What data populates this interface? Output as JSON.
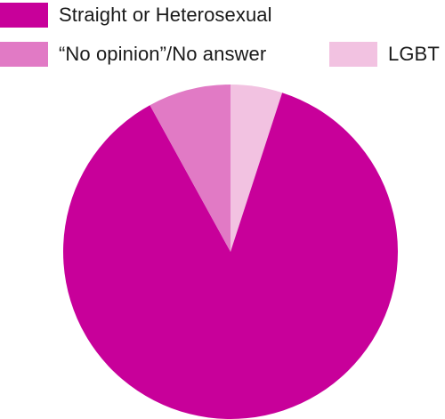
{
  "chart_data": {
    "type": "pie",
    "title": "",
    "legend_placement": "top",
    "slices": [
      {
        "label": "Straight or Heterosexual",
        "value": 87,
        "color": "#c8009a"
      },
      {
        "label": "“No opinion”/No answer",
        "value": 8,
        "color": "#e17ac5"
      },
      {
        "label": "LGBT",
        "value": 5,
        "color": "#f2c2e1"
      }
    ]
  }
}
